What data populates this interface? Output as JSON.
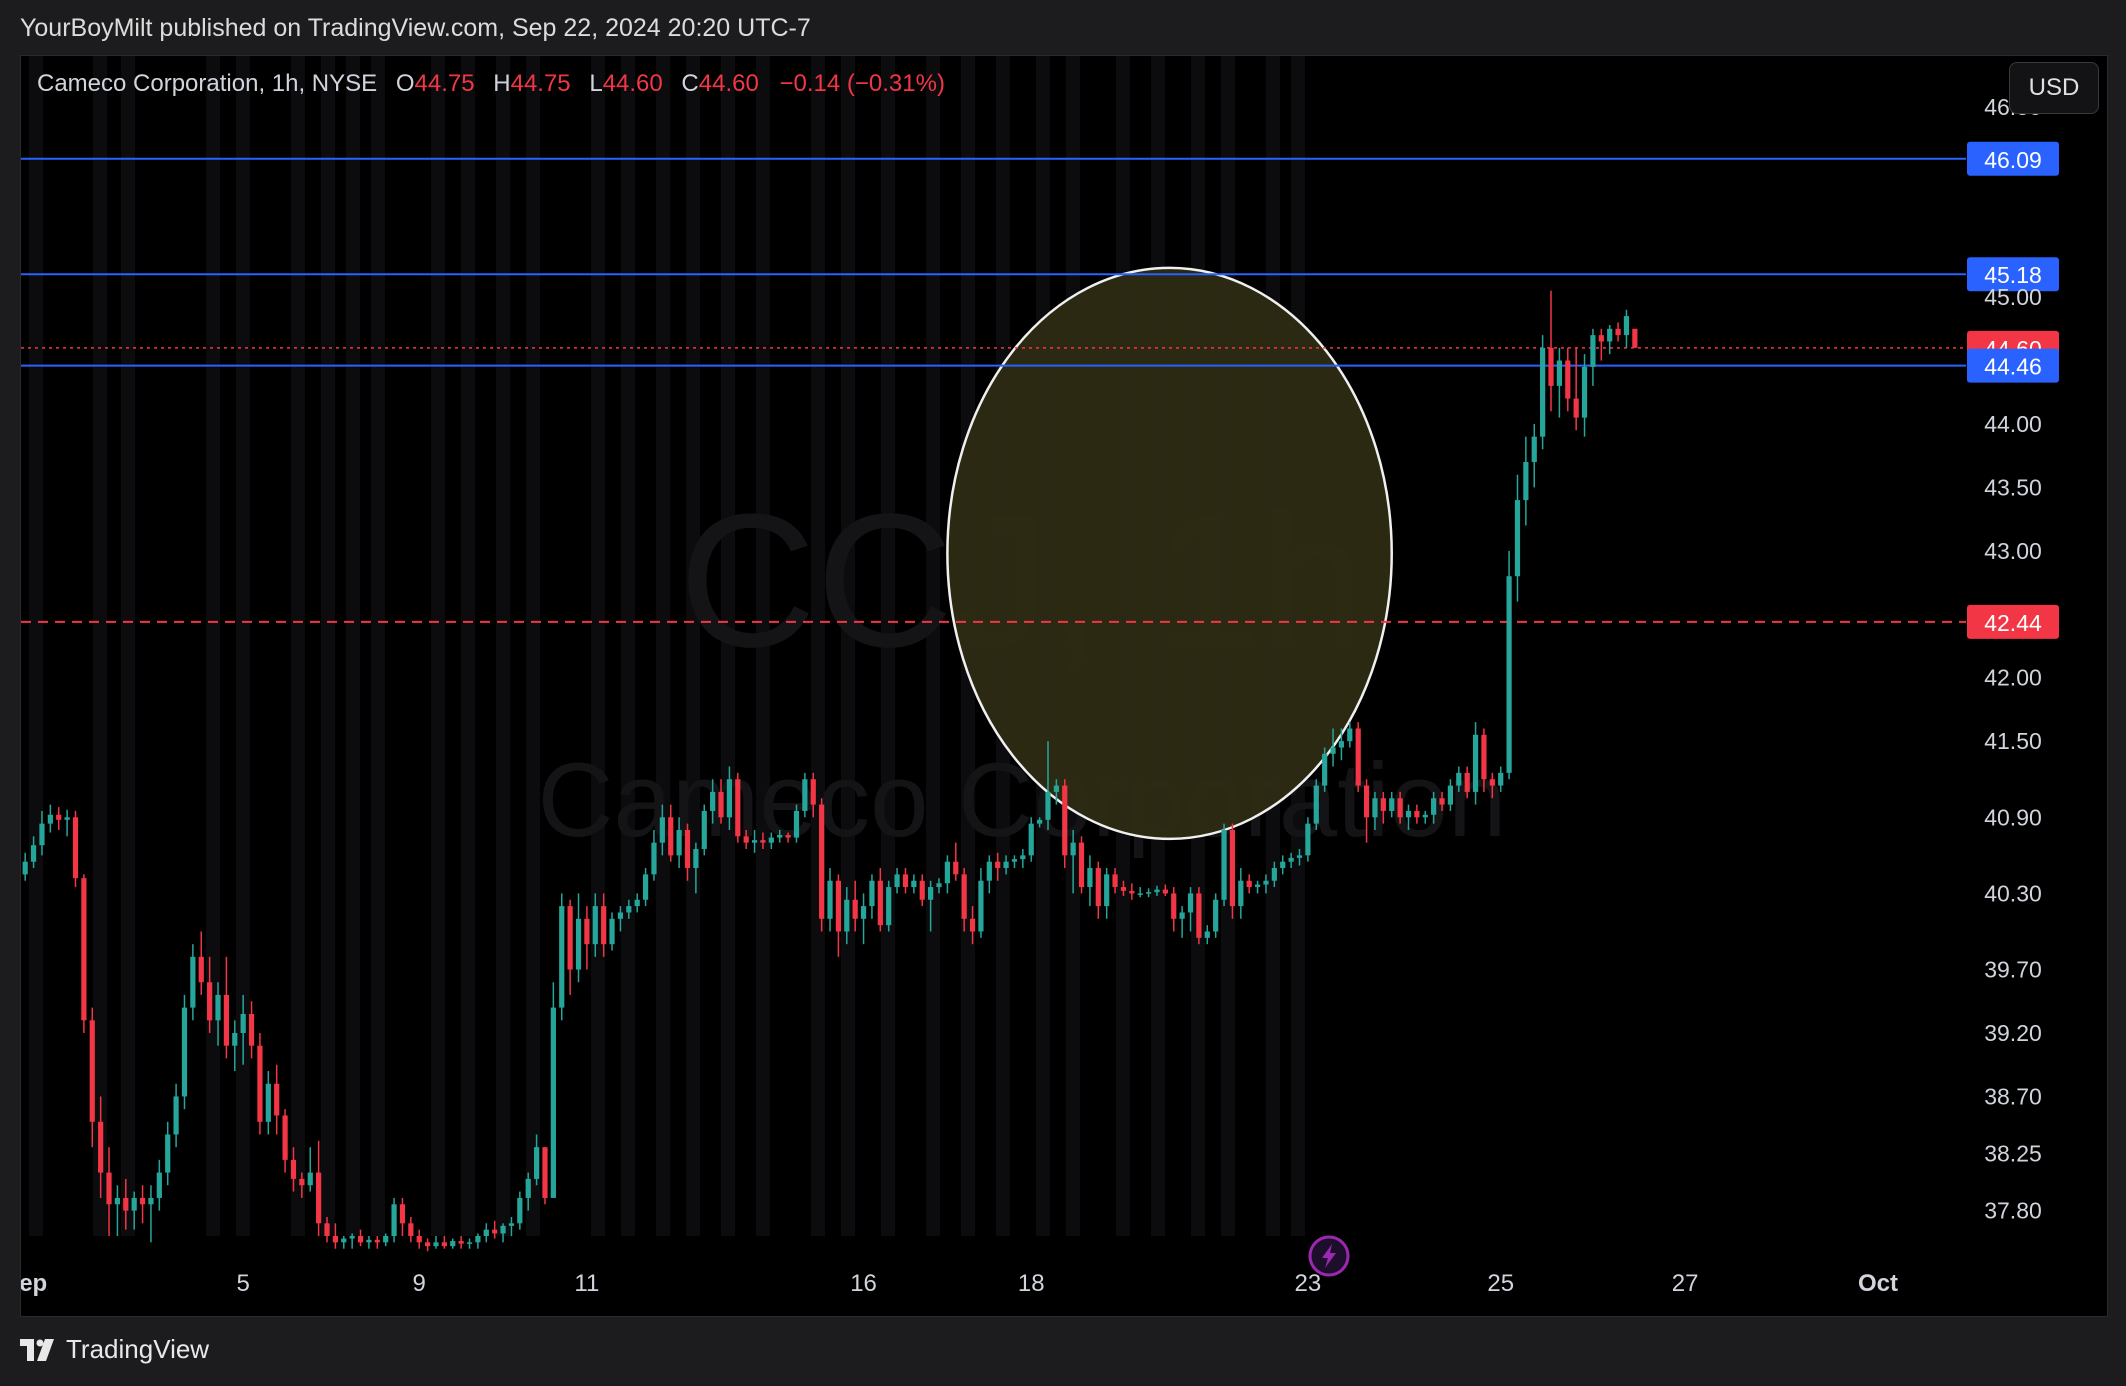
{
  "header": {
    "publisher_line": "YourBoyMilt published on TradingView.com, Sep 22, 2024 20:20 UTC-7"
  },
  "legend": {
    "symbol": "Cameco Corporation, 1h, NYSE",
    "o_label": "O",
    "o_value": "44.75",
    "h_label": "H",
    "h_value": "44.75",
    "l_label": "L",
    "l_value": "44.60",
    "c_label": "C",
    "c_value": "44.60",
    "change": "−0.14 (−0.31%)"
  },
  "currency_button": "USD",
  "watermark": {
    "ticker": "CCJ, 1h",
    "name": "Cameco Corporation"
  },
  "footer": {
    "brand": "TradingView"
  },
  "colors": {
    "up": "#26a69a",
    "down": "#f23645",
    "level": "#2962ff",
    "background": "#000000",
    "highlight_circle": "#2f2c13"
  },
  "chart_data": {
    "type": "candlestick",
    "symbol": "CCJ",
    "interval": "1h",
    "exchange": "NYSE",
    "ylim": [
      37.6,
      46.9
    ],
    "y_ticks": [
      "46.50",
      "45.00",
      "44.00",
      "43.50",
      "43.00",
      "42.00",
      "41.50",
      "40.90",
      "40.30",
      "39.70",
      "39.20",
      "38.70",
      "38.25",
      "37.80"
    ],
    "x_ticks": [
      {
        "label": "Sep",
        "bar": 0
      },
      {
        "label": "5",
        "bar": 26
      },
      {
        "label": "9",
        "bar": 47
      },
      {
        "label": "11",
        "bar": 67
      },
      {
        "label": "16",
        "bar": 100
      },
      {
        "label": "18",
        "bar": 120
      },
      {
        "label": "23",
        "bar": 153
      },
      {
        "label": "25",
        "bar": 176
      },
      {
        "label": "27",
        "bar": 198
      },
      {
        "label": "Oct",
        "bar": 221
      }
    ],
    "total_slots": 232,
    "price_lines": [
      {
        "value": 46.09,
        "label": "46.09",
        "style": "solid",
        "color": "#2962ff"
      },
      {
        "value": 45.18,
        "label": "45.18",
        "style": "solid",
        "color": "#2962ff"
      },
      {
        "value": 44.6,
        "label": "44.60",
        "style": "dotted",
        "color": "#f23645"
      },
      {
        "value": 44.46,
        "label": "44.46",
        "style": "solid",
        "color": "#2962ff"
      },
      {
        "value": 42.44,
        "label": "42.44",
        "style": "dashed",
        "color": "#f23645"
      }
    ],
    "highlight_circle": {
      "bar_center": 136.5,
      "price_center": 42.98,
      "bar_radius": 26.5,
      "price_radius": 2.25
    },
    "candles": [
      [
        40.45,
        40.62,
        40.4,
        40.55
      ],
      [
        40.55,
        40.75,
        40.5,
        40.68
      ],
      [
        40.68,
        40.95,
        40.6,
        40.85
      ],
      [
        40.85,
        41.0,
        40.78,
        40.92
      ],
      [
        40.92,
        40.98,
        40.8,
        40.88
      ],
      [
        40.88,
        40.96,
        40.75,
        40.9
      ],
      [
        40.9,
        40.95,
        40.35,
        40.42
      ],
      [
        40.42,
        40.45,
        39.2,
        39.3
      ],
      [
        39.3,
        39.4,
        38.3,
        38.5
      ],
      [
        38.5,
        38.7,
        37.9,
        38.1
      ],
      [
        38.1,
        38.3,
        37.6,
        37.85
      ],
      [
        37.85,
        38.0,
        37.6,
        37.9
      ],
      [
        37.9,
        38.05,
        37.65,
        37.8
      ],
      [
        37.8,
        37.95,
        37.65,
        37.9
      ],
      [
        37.9,
        38.0,
        37.7,
        37.85
      ],
      [
        37.85,
        38.0,
        37.55,
        37.9
      ],
      [
        37.9,
        38.2,
        37.8,
        38.1
      ],
      [
        38.1,
        38.5,
        38.0,
        38.4
      ],
      [
        38.4,
        38.8,
        38.3,
        38.7
      ],
      [
        38.7,
        39.5,
        38.6,
        39.4
      ],
      [
        39.4,
        39.9,
        39.3,
        39.8
      ],
      [
        39.8,
        40.0,
        39.5,
        39.6
      ],
      [
        39.6,
        39.8,
        39.2,
        39.3
      ],
      [
        39.3,
        39.6,
        39.1,
        39.5
      ],
      [
        39.5,
        39.8,
        39.0,
        39.1
      ],
      [
        39.1,
        39.3,
        38.9,
        39.2
      ],
      [
        39.2,
        39.5,
        38.95,
        39.35
      ],
      [
        39.35,
        39.45,
        39.0,
        39.1
      ],
      [
        39.1,
        39.2,
        38.4,
        38.5
      ],
      [
        38.5,
        38.9,
        38.4,
        38.8
      ],
      [
        38.8,
        38.95,
        38.4,
        38.55
      ],
      [
        38.55,
        38.6,
        38.1,
        38.2
      ],
      [
        38.2,
        38.3,
        37.95,
        38.05
      ],
      [
        38.05,
        38.1,
        37.9,
        38.0
      ],
      [
        38.0,
        38.3,
        37.95,
        38.1
      ],
      [
        38.1,
        38.35,
        37.6,
        37.7
      ],
      [
        37.7,
        37.75,
        37.55,
        37.6
      ],
      [
        37.6,
        37.7,
        37.5,
        37.55
      ],
      [
        37.55,
        37.6,
        37.5,
        37.58
      ],
      [
        37.58,
        37.62,
        37.5,
        37.6
      ],
      [
        37.6,
        37.65,
        37.52,
        37.55
      ],
      [
        37.55,
        37.6,
        37.5,
        37.57
      ],
      [
        37.57,
        37.6,
        37.5,
        37.55
      ],
      [
        37.55,
        37.62,
        37.52,
        37.6
      ],
      [
        37.6,
        37.9,
        37.55,
        37.85
      ],
      [
        37.85,
        37.9,
        37.6,
        37.7
      ],
      [
        37.7,
        37.75,
        37.55,
        37.6
      ],
      [
        37.6,
        37.65,
        37.5,
        37.55
      ],
      [
        37.55,
        37.58,
        37.48,
        37.52
      ],
      [
        37.52,
        37.6,
        37.5,
        37.55
      ],
      [
        37.55,
        37.6,
        37.5,
        37.52
      ],
      [
        37.52,
        37.58,
        37.5,
        37.56
      ],
      [
        37.56,
        37.6,
        37.5,
        37.54
      ],
      [
        37.54,
        37.58,
        37.5,
        37.55
      ],
      [
        37.55,
        37.62,
        37.5,
        37.6
      ],
      [
        37.6,
        37.7,
        37.55,
        37.65
      ],
      [
        37.65,
        37.72,
        37.58,
        37.62
      ],
      [
        37.62,
        37.7,
        37.55,
        37.68
      ],
      [
        37.68,
        37.75,
        37.6,
        37.7
      ],
      [
        37.7,
        37.95,
        37.65,
        37.9
      ],
      [
        37.9,
        38.1,
        37.8,
        38.05
      ],
      [
        38.05,
        38.4,
        38.0,
        38.3
      ],
      [
        38.3,
        38.3,
        37.85,
        37.9
      ],
      [
        37.9,
        39.6,
        37.9,
        39.4
      ],
      [
        39.4,
        40.3,
        39.3,
        40.2
      ],
      [
        40.2,
        40.25,
        39.5,
        39.7
      ],
      [
        39.7,
        40.3,
        39.6,
        40.1
      ],
      [
        40.1,
        40.2,
        39.7,
        39.9
      ],
      [
        39.9,
        40.3,
        39.8,
        40.2
      ],
      [
        40.2,
        40.3,
        39.8,
        39.9
      ],
      [
        39.9,
        40.15,
        39.85,
        40.1
      ],
      [
        40.1,
        40.2,
        40.0,
        40.15
      ],
      [
        40.15,
        40.25,
        40.1,
        40.2
      ],
      [
        40.2,
        40.3,
        40.15,
        40.25
      ],
      [
        40.25,
        40.5,
        40.2,
        40.45
      ],
      [
        40.45,
        40.8,
        40.4,
        40.7
      ],
      [
        40.7,
        41.0,
        40.6,
        40.9
      ],
      [
        40.9,
        41.0,
        40.55,
        40.6
      ],
      [
        40.6,
        40.9,
        40.5,
        40.8
      ],
      [
        40.8,
        40.85,
        40.4,
        40.5
      ],
      [
        40.5,
        40.7,
        40.3,
        40.65
      ],
      [
        40.65,
        41.0,
        40.6,
        40.95
      ],
      [
        40.95,
        41.2,
        40.85,
        41.1
      ],
      [
        41.1,
        41.2,
        40.85,
        40.9
      ],
      [
        40.9,
        41.3,
        40.8,
        41.2
      ],
      [
        41.2,
        41.25,
        40.7,
        40.75
      ],
      [
        40.75,
        40.8,
        40.65,
        40.7
      ],
      [
        40.7,
        40.8,
        40.62,
        40.72
      ],
      [
        40.72,
        40.78,
        40.65,
        40.7
      ],
      [
        40.7,
        40.78,
        40.65,
        40.74
      ],
      [
        40.74,
        40.8,
        40.7,
        40.76
      ],
      [
        40.76,
        40.78,
        40.7,
        40.74
      ],
      [
        40.74,
        41.0,
        40.7,
        40.95
      ],
      [
        40.95,
        41.25,
        40.9,
        41.2
      ],
      [
        41.2,
        41.25,
        40.9,
        41.0
      ],
      [
        41.0,
        41.05,
        40.0,
        40.1
      ],
      [
        40.1,
        40.5,
        40.0,
        40.4
      ],
      [
        40.4,
        40.45,
        39.8,
        40.0
      ],
      [
        40.0,
        40.35,
        39.9,
        40.25
      ],
      [
        40.25,
        40.4,
        40.0,
        40.1
      ],
      [
        40.1,
        40.3,
        39.9,
        40.2
      ],
      [
        40.2,
        40.45,
        40.1,
        40.4
      ],
      [
        40.4,
        40.5,
        40.0,
        40.05
      ],
      [
        40.05,
        40.4,
        40.0,
        40.35
      ],
      [
        40.35,
        40.5,
        40.3,
        40.45
      ],
      [
        40.45,
        40.5,
        40.3,
        40.35
      ],
      [
        40.35,
        40.45,
        40.3,
        40.4
      ],
      [
        40.4,
        40.45,
        40.2,
        40.25
      ],
      [
        40.25,
        40.4,
        40.0,
        40.35
      ],
      [
        40.35,
        40.42,
        40.3,
        40.38
      ],
      [
        40.38,
        40.6,
        40.3,
        40.55
      ],
      [
        40.55,
        40.7,
        40.4,
        40.45
      ],
      [
        40.45,
        40.5,
        40.0,
        40.1
      ],
      [
        40.1,
        40.2,
        39.9,
        40.0
      ],
      [
        40.0,
        40.5,
        39.95,
        40.4
      ],
      [
        40.4,
        40.6,
        40.3,
        40.55
      ],
      [
        40.55,
        40.62,
        40.4,
        40.5
      ],
      [
        40.5,
        40.6,
        40.45,
        40.55
      ],
      [
        40.55,
        40.6,
        40.5,
        40.57
      ],
      [
        40.57,
        40.65,
        40.5,
        40.6
      ],
      [
        40.6,
        40.9,
        40.55,
        40.85
      ],
      [
        40.85,
        40.9,
        40.82,
        40.88
      ],
      [
        40.88,
        41.5,
        40.8,
        41.1
      ],
      [
        41.1,
        41.2,
        41.0,
        41.15
      ],
      [
        41.15,
        41.2,
        40.5,
        40.6
      ],
      [
        40.6,
        40.8,
        40.3,
        40.7
      ],
      [
        40.7,
        40.75,
        40.3,
        40.35
      ],
      [
        40.35,
        40.6,
        40.2,
        40.5
      ],
      [
        40.5,
        40.55,
        40.1,
        40.2
      ],
      [
        40.2,
        40.5,
        40.1,
        40.45
      ],
      [
        40.45,
        40.5,
        40.3,
        40.35
      ],
      [
        40.35,
        40.4,
        40.28,
        40.32
      ],
      [
        40.32,
        40.38,
        40.25,
        40.3
      ],
      [
        40.3,
        40.35,
        40.27,
        40.3
      ],
      [
        40.3,
        40.34,
        40.27,
        40.31
      ],
      [
        40.31,
        40.36,
        40.28,
        40.33
      ],
      [
        40.33,
        40.37,
        40.28,
        40.3
      ],
      [
        40.3,
        40.35,
        40.0,
        40.1
      ],
      [
        40.1,
        40.2,
        39.95,
        40.15
      ],
      [
        40.15,
        40.35,
        40.0,
        40.3
      ],
      [
        40.3,
        40.35,
        39.9,
        39.95
      ],
      [
        39.95,
        40.05,
        39.9,
        40.0
      ],
      [
        40.0,
        40.3,
        39.95,
        40.25
      ],
      [
        40.25,
        40.85,
        40.2,
        40.8
      ],
      [
        40.8,
        40.85,
        40.1,
        40.2
      ],
      [
        40.2,
        40.5,
        40.1,
        40.4
      ],
      [
        40.4,
        40.45,
        40.3,
        40.35
      ],
      [
        40.35,
        40.4,
        40.3,
        40.37
      ],
      [
        40.37,
        40.45,
        40.3,
        40.4
      ],
      [
        40.4,
        40.55,
        40.35,
        40.5
      ],
      [
        40.5,
        40.6,
        40.45,
        40.55
      ],
      [
        40.55,
        40.62,
        40.5,
        40.58
      ],
      [
        40.58,
        40.65,
        40.52,
        40.6
      ],
      [
        40.6,
        40.9,
        40.55,
        40.85
      ],
      [
        40.85,
        41.2,
        40.8,
        41.15
      ],
      [
        41.15,
        41.45,
        41.1,
        41.4
      ],
      [
        41.4,
        41.6,
        41.3,
        41.45
      ],
      [
        41.45,
        41.6,
        41.35,
        41.5
      ],
      [
        41.5,
        41.65,
        41.45,
        41.6
      ],
      [
        41.6,
        41.65,
        41.1,
        41.15
      ],
      [
        41.15,
        41.2,
        40.7,
        40.9
      ],
      [
        40.9,
        41.1,
        40.8,
        41.05
      ],
      [
        41.05,
        41.1,
        40.85,
        40.95
      ],
      [
        40.95,
        41.1,
        40.9,
        41.05
      ],
      [
        41.05,
        41.1,
        40.85,
        40.9
      ],
      [
        40.9,
        41.0,
        40.8,
        40.95
      ],
      [
        40.95,
        41.0,
        40.85,
        40.9
      ],
      [
        40.9,
        40.95,
        40.85,
        40.92
      ],
      [
        40.92,
        41.1,
        40.85,
        41.05
      ],
      [
        41.05,
        41.1,
        40.95,
        41.0
      ],
      [
        41.0,
        41.2,
        40.95,
        41.15
      ],
      [
        41.15,
        41.3,
        41.1,
        41.25
      ],
      [
        41.25,
        41.3,
        41.05,
        41.1
      ],
      [
        41.1,
        41.65,
        41.0,
        41.55
      ],
      [
        41.55,
        41.6,
        41.1,
        41.2
      ],
      [
        41.2,
        41.25,
        41.05,
        41.15
      ],
      [
        41.15,
        41.3,
        41.1,
        41.25
      ],
      [
        41.25,
        43.0,
        41.2,
        42.8
      ],
      [
        42.8,
        43.6,
        42.6,
        43.4
      ],
      [
        43.4,
        43.9,
        43.2,
        43.7
      ],
      [
        43.7,
        44.0,
        43.5,
        43.9
      ],
      [
        43.9,
        44.7,
        43.8,
        44.6
      ],
      [
        44.6,
        45.05,
        44.1,
        44.3
      ],
      [
        44.3,
        44.6,
        44.05,
        44.5
      ],
      [
        44.5,
        44.6,
        44.1,
        44.2
      ],
      [
        44.2,
        44.6,
        43.95,
        44.05
      ],
      [
        44.05,
        44.55,
        43.9,
        44.45
      ],
      [
        44.45,
        44.75,
        44.3,
        44.7
      ],
      [
        44.7,
        44.75,
        44.5,
        44.65
      ],
      [
        44.65,
        44.78,
        44.55,
        44.75
      ],
      [
        44.75,
        44.8,
        44.65,
        44.7
      ],
      [
        44.7,
        44.9,
        44.6,
        44.85
      ],
      [
        44.75,
        44.75,
        44.6,
        44.6
      ]
    ]
  }
}
